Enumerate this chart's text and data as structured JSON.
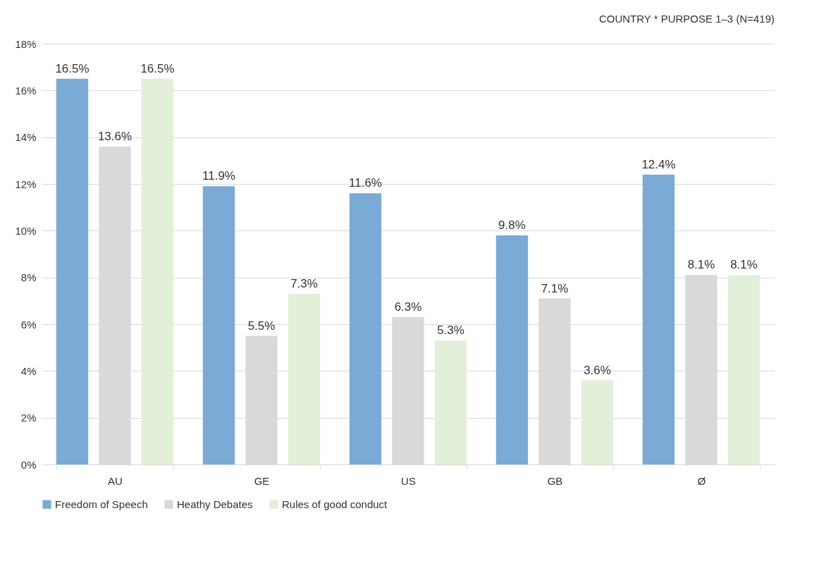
{
  "chart_data": {
    "type": "bar",
    "title": "COUNTRY * PURPOSE 1–3 (N=419)",
    "categories": [
      "AU",
      "GE",
      "US",
      "GB",
      "Ø"
    ],
    "series": [
      {
        "name": "Freedom of Speech",
        "color": "#7aaad6",
        "values": [
          16.5,
          11.9,
          11.6,
          9.8,
          12.4
        ],
        "value_labels": [
          "16.5%",
          "11.9%",
          "11.6%",
          "9.8%",
          "12.4%"
        ]
      },
      {
        "name": "Heathy Debates",
        "color": "#d9d9d9",
        "values": [
          13.6,
          5.5,
          6.3,
          7.1,
          8.1
        ],
        "value_labels": [
          "13.6%",
          "5.5%",
          "6.3%",
          "7.1%",
          "8.1%"
        ]
      },
      {
        "name": "Rules of good conduct",
        "color": "#e2f0d9",
        "values": [
          16.5,
          7.3,
          5.3,
          3.6,
          8.1
        ],
        "value_labels": [
          "16.5%",
          "7.3%",
          "5.3%",
          "3.6%",
          "8.1%"
        ]
      }
    ],
    "ylim": [
      0,
      18
    ],
    "yticks": [
      {
        "value": 0,
        "label": "0%"
      },
      {
        "value": 2,
        "label": "2%"
      },
      {
        "value": 4,
        "label": "4%"
      },
      {
        "value": 6,
        "label": "6%"
      },
      {
        "value": 8,
        "label": "8%"
      },
      {
        "value": 10,
        "label": "10%"
      },
      {
        "value": 12,
        "label": "12%"
      },
      {
        "value": 14,
        "label": "14%"
      },
      {
        "value": 16,
        "label": "16%"
      },
      {
        "value": 18,
        "label": "18%"
      }
    ],
    "grid": "y",
    "legend": "bottom"
  }
}
